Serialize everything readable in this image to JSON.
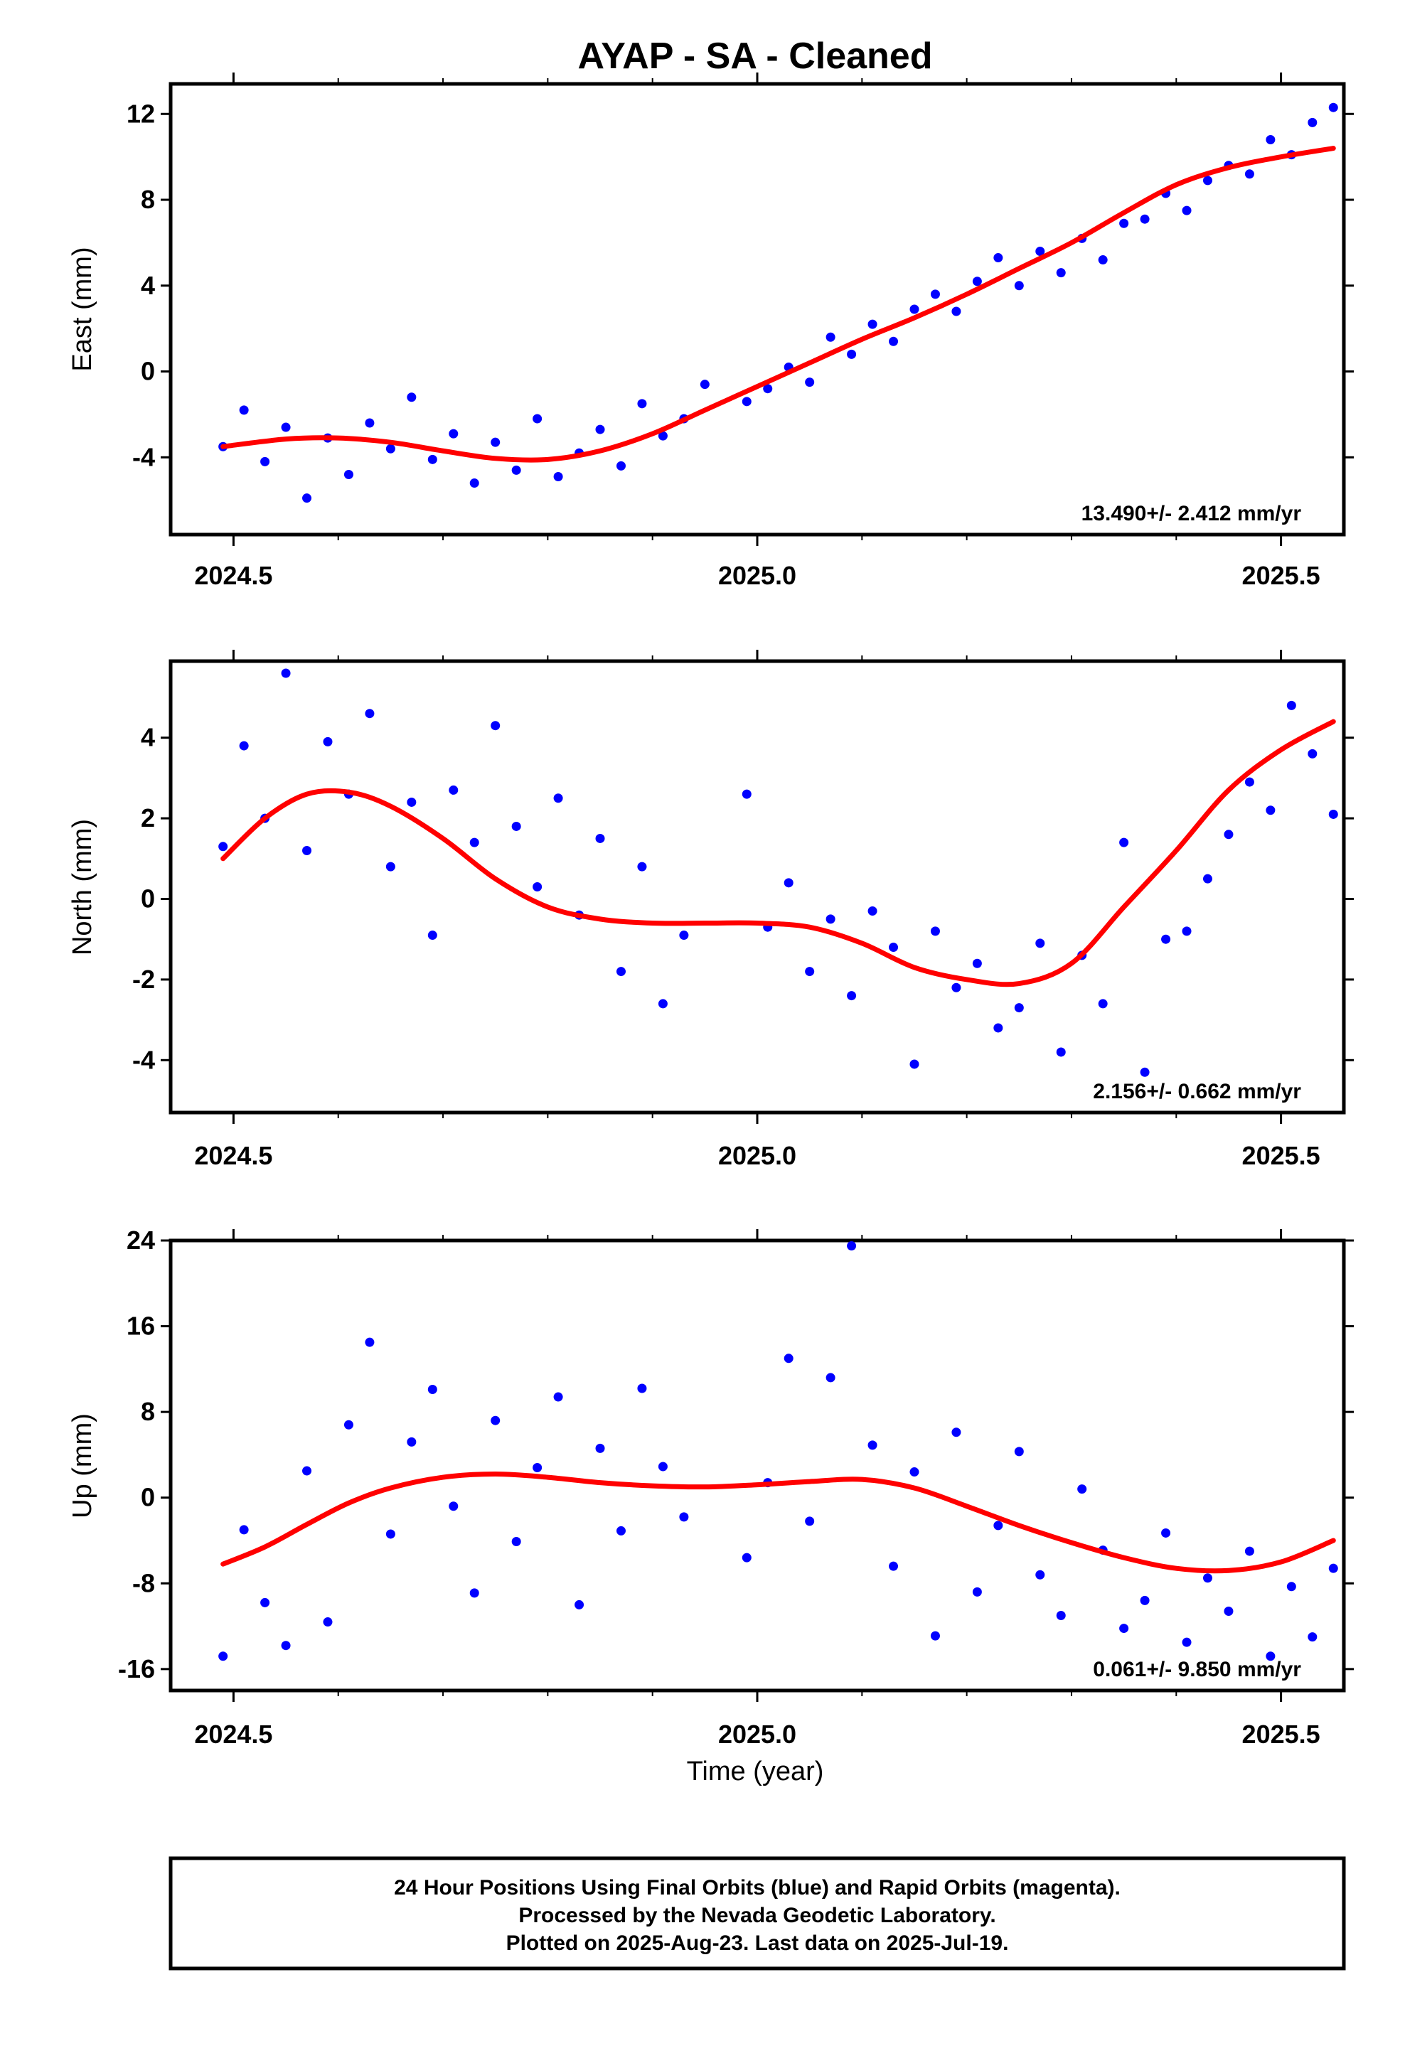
{
  "chart_data": [
    {
      "type": "scatter",
      "panel": "east",
      "title": "AYAP  - SA - Cleaned",
      "ylabel": "East (mm)",
      "xlim": [
        2024.44,
        2025.56
      ],
      "ylim": [
        -7.6,
        13.4
      ],
      "x_ticks": [
        2024.5,
        2025.0,
        2025.5
      ],
      "x_tick_labels": [
        "2024.5",
        "2025.0",
        "2025.5"
      ],
      "y_ticks": [
        -4,
        0,
        4,
        8,
        12
      ],
      "y_tick_labels": [
        "-4",
        "0",
        "4",
        "8",
        "12"
      ],
      "rate_text": "13.490+/- 2.412 mm/yr",
      "series": [
        {
          "kind": "points",
          "color": "#0000ff",
          "x": [
            2024.49,
            2024.51,
            2024.53,
            2024.55,
            2024.57,
            2024.59,
            2024.61,
            2024.63,
            2024.65,
            2024.67,
            2024.69,
            2024.71,
            2024.73,
            2024.75,
            2024.77,
            2024.79,
            2024.81,
            2024.83,
            2024.85,
            2024.87,
            2024.89,
            2024.91,
            2024.93,
            2024.95,
            2024.97,
            2024.99,
            2025.01,
            2025.03,
            2025.05,
            2025.07,
            2025.09,
            2025.11,
            2025.13,
            2025.15,
            2025.17,
            2025.19,
            2025.21,
            2025.23,
            2025.25,
            2025.27,
            2025.29,
            2025.31,
            2025.33,
            2025.35,
            2025.37,
            2025.39,
            2025.41,
            2025.43,
            2025.45,
            2025.47,
            2025.49,
            2025.51,
            2025.53,
            2025.55
          ],
          "y": [
            -3.5,
            -1.8,
            -4.2,
            -2.6,
            -5.9,
            -3.1,
            -4.8,
            -2.4,
            -3.6,
            -1.2,
            -4.1,
            -2.9,
            -5.2,
            -3.3,
            -4.6,
            -2.2,
            -4.9,
            -3.8,
            -2.7,
            -4.4,
            -1.5,
            -3.0,
            -2.2,
            -0.6,
            null,
            -1.4,
            -0.8,
            0.2,
            -0.5,
            1.6,
            0.8,
            2.2,
            1.4,
            2.9,
            3.6,
            2.8,
            4.2,
            5.3,
            4.0,
            5.6,
            4.6,
            6.2,
            5.2,
            6.9,
            7.1,
            8.3,
            7.5,
            8.9,
            9.6,
            9.2,
            10.8,
            10.1,
            11.6,
            12.3
          ]
        },
        {
          "kind": "fit",
          "color": "#ff0000",
          "x": [
            2024.49,
            2024.55,
            2024.6,
            2024.65,
            2024.7,
            2024.75,
            2024.8,
            2024.85,
            2024.9,
            2024.95,
            2025.0,
            2025.05,
            2025.1,
            2025.15,
            2025.2,
            2025.25,
            2025.3,
            2025.35,
            2025.4,
            2025.45,
            2025.5,
            2025.55
          ],
          "y": [
            -3.5,
            -3.15,
            -3.1,
            -3.3,
            -3.7,
            -4.05,
            -4.1,
            -3.7,
            -2.9,
            -1.8,
            -0.7,
            0.4,
            1.5,
            2.5,
            3.6,
            4.8,
            6.0,
            7.4,
            8.7,
            9.5,
            10.0,
            10.4
          ]
        }
      ]
    },
    {
      "type": "scatter",
      "panel": "north",
      "ylabel": "North (mm)",
      "xlim": [
        2024.44,
        2025.56
      ],
      "ylim": [
        -5.3,
        5.9
      ],
      "x_ticks": [
        2024.5,
        2025.0,
        2025.5
      ],
      "x_tick_labels": [
        "2024.5",
        "2025.0",
        "2025.5"
      ],
      "y_ticks": [
        -4,
        -2,
        0,
        2,
        4
      ],
      "y_tick_labels": [
        "-4",
        "-2",
        "0",
        "2",
        "4"
      ],
      "rate_text": "2.156+/- 0.662 mm/yr",
      "series": [
        {
          "kind": "points",
          "color": "#0000ff",
          "x": [
            2024.49,
            2024.51,
            2024.53,
            2024.55,
            2024.57,
            2024.59,
            2024.61,
            2024.63,
            2024.65,
            2024.67,
            2024.69,
            2024.71,
            2024.73,
            2024.75,
            2024.77,
            2024.79,
            2024.81,
            2024.83,
            2024.85,
            2024.87,
            2024.89,
            2024.91,
            2024.93,
            2024.99,
            2025.01,
            2025.03,
            2025.05,
            2025.07,
            2025.09,
            2025.11,
            2025.13,
            2025.15,
            2025.17,
            2025.19,
            2025.21,
            2025.23,
            2025.25,
            2025.27,
            2025.29,
            2025.31,
            2025.33,
            2025.35,
            2025.37,
            2025.39,
            2025.41,
            2025.43,
            2025.45,
            2025.47,
            2025.49,
            2025.51,
            2025.53,
            2025.55
          ],
          "y": [
            1.3,
            3.8,
            2.0,
            5.6,
            1.2,
            3.9,
            2.6,
            4.6,
            0.8,
            2.4,
            -0.9,
            2.7,
            1.4,
            4.3,
            1.8,
            0.3,
            2.5,
            -0.4,
            1.5,
            -1.8,
            0.8,
            -2.6,
            -0.9,
            2.6,
            -0.7,
            0.4,
            -1.8,
            -0.5,
            -2.4,
            -0.3,
            -1.2,
            -4.1,
            -0.8,
            -2.2,
            -1.6,
            -3.2,
            -2.7,
            -1.1,
            -3.8,
            -1.4,
            -2.6,
            1.4,
            -4.3,
            -1.0,
            -0.8,
            0.5,
            1.6,
            2.9,
            2.2,
            4.8,
            3.6,
            2.1
          ]
        },
        {
          "kind": "fit",
          "color": "#ff0000",
          "x": [
            2024.49,
            2024.53,
            2024.57,
            2024.61,
            2024.65,
            2024.7,
            2024.75,
            2024.8,
            2024.85,
            2024.9,
            2024.95,
            2025.0,
            2025.05,
            2025.1,
            2025.15,
            2025.2,
            2025.25,
            2025.3,
            2025.35,
            2025.4,
            2025.45,
            2025.5,
            2025.55
          ],
          "y": [
            1.0,
            2.0,
            2.6,
            2.65,
            2.3,
            1.5,
            0.5,
            -0.2,
            -0.5,
            -0.6,
            -0.6,
            -0.6,
            -0.7,
            -1.1,
            -1.7,
            -2.0,
            -2.1,
            -1.6,
            -0.2,
            1.2,
            2.7,
            3.7,
            4.4
          ]
        }
      ]
    },
    {
      "type": "scatter",
      "panel": "up",
      "ylabel": "Up (mm)",
      "xlabel": "Time (year)",
      "xlim": [
        2024.44,
        2025.56
      ],
      "ylim": [
        -18,
        24
      ],
      "x_ticks": [
        2024.5,
        2025.0,
        2025.5
      ],
      "x_tick_labels": [
        "2024.5",
        "2025.0",
        "2025.5"
      ],
      "y_ticks": [
        -16,
        -8,
        0,
        8,
        16,
        24
      ],
      "y_tick_labels": [
        "-16",
        "-8",
        "0",
        "8",
        "16",
        "24"
      ],
      "rate_text": "0.061+/- 9.850 mm/yr",
      "series": [
        {
          "kind": "points",
          "color": "#0000ff",
          "x": [
            2024.49,
            2024.51,
            2024.53,
            2024.55,
            2024.57,
            2024.59,
            2024.61,
            2024.63,
            2024.65,
            2024.67,
            2024.69,
            2024.71,
            2024.73,
            2024.75,
            2024.77,
            2024.79,
            2024.81,
            2024.83,
            2024.85,
            2024.87,
            2024.89,
            2024.91,
            2024.93,
            2024.99,
            2025.01,
            2025.03,
            2025.05,
            2025.07,
            2025.09,
            2025.11,
            2025.13,
            2025.15,
            2025.17,
            2025.19,
            2025.21,
            2025.23,
            2025.25,
            2025.27,
            2025.29,
            2025.31,
            2025.33,
            2025.35,
            2025.37,
            2025.39,
            2025.41,
            2025.43,
            2025.45,
            2025.47,
            2025.49,
            2025.51,
            2025.53,
            2025.55
          ],
          "y": [
            -14.8,
            -3.0,
            -9.8,
            -13.8,
            2.5,
            -11.6,
            6.8,
            14.5,
            -3.4,
            5.2,
            10.1,
            -0.8,
            -8.9,
            7.2,
            -4.1,
            2.8,
            9.4,
            -10.0,
            4.6,
            -3.1,
            10.2,
            2.9,
            -1.8,
            -5.6,
            1.4,
            13.0,
            -2.2,
            11.2,
            23.5,
            4.9,
            -6.4,
            2.4,
            -12.9,
            6.1,
            -8.8,
            -2.6,
            4.3,
            -7.2,
            -11.0,
            0.8,
            -4.9,
            -12.2,
            -9.6,
            -3.3,
            -13.5,
            -7.5,
            -10.6,
            -5.0,
            -14.8,
            -8.3,
            -13.0,
            -6.6
          ]
        },
        {
          "kind": "fit",
          "color": "#ff0000",
          "x": [
            2024.49,
            2024.53,
            2024.57,
            2024.61,
            2024.65,
            2024.7,
            2024.75,
            2024.8,
            2024.85,
            2024.9,
            2024.95,
            2025.0,
            2025.05,
            2025.1,
            2025.15,
            2025.2,
            2025.25,
            2025.3,
            2025.35,
            2025.4,
            2025.45,
            2025.5,
            2025.55
          ],
          "y": [
            -6.2,
            -4.6,
            -2.5,
            -0.5,
            0.9,
            1.9,
            2.2,
            1.9,
            1.4,
            1.1,
            1.0,
            1.2,
            1.5,
            1.7,
            0.9,
            -0.8,
            -2.6,
            -4.2,
            -5.6,
            -6.6,
            -6.8,
            -6.0,
            -4.0
          ]
        }
      ]
    }
  ],
  "footer": {
    "line1": "24 Hour Positions Using Final Orbits (blue) and Rapid Orbits (magenta).",
    "line2": "Processed by the Nevada Geodetic Laboratory.",
    "line3": "Plotted on 2025-Aug-23. Last data on 2025-Jul-19."
  }
}
